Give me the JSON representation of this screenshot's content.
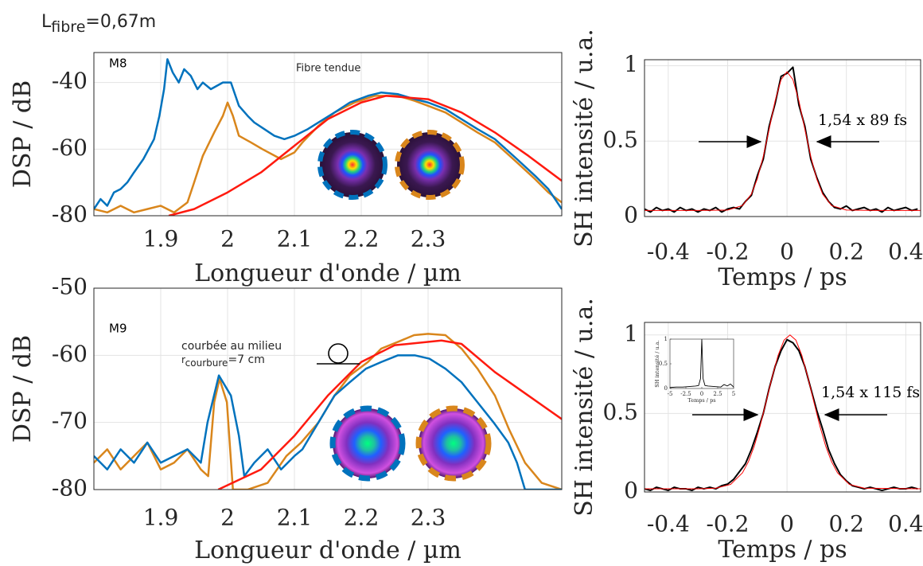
{
  "figure_label": {
    "base": "L",
    "subscript": "fibre",
    "rest": "=0,67m"
  },
  "chart_data": [
    {
      "type": "line",
      "xlabel": "Longueur d'onde / µm",
      "ylabel": "DSP / dB",
      "annotations": [
        "M8",
        "Fibre tendue"
      ],
      "xlim": [
        1.8,
        2.5
      ],
      "ylim": [
        -80,
        -31
      ],
      "xticks": [
        1.9,
        2,
        2.1,
        2.2,
        2.3
      ],
      "yticks": [
        -80,
        -60,
        -40
      ],
      "grid": true,
      "series": [
        {
          "color": "#d9861c",
          "x": [
            1.8,
            1.82,
            1.84,
            1.86,
            1.88,
            1.9,
            1.92,
            1.94,
            1.95,
            1.963,
            1.98,
            1.993,
            2.0,
            2.008,
            2.017,
            2.035,
            2.052,
            2.08,
            2.1,
            2.112,
            2.136,
            2.16,
            2.19,
            2.22,
            2.255,
            2.28,
            2.3,
            2.326,
            2.35,
            2.374,
            2.4,
            2.433,
            2.46,
            2.48,
            2.5
          ],
          "values": [
            -78,
            -79,
            -77,
            -79,
            -78,
            -77,
            -79,
            -76,
            -70,
            -62,
            -55,
            -50,
            -46,
            -50,
            -56,
            -58,
            -60,
            -63,
            -61,
            -58,
            -53,
            -49,
            -46,
            -44,
            -44,
            -45.5,
            -47,
            -49,
            -52,
            -55,
            -58,
            -64,
            -69,
            -73,
            -76
          ]
        },
        {
          "color": "#0072bd",
          "x": [
            1.8,
            1.81,
            1.82,
            1.83,
            1.84,
            1.85,
            1.86,
            1.874,
            1.89,
            1.898,
            1.905,
            1.91,
            1.918,
            1.927,
            1.935,
            1.945,
            1.955,
            1.963,
            1.975,
            1.993,
            2.005,
            2.017,
            2.03,
            2.04,
            2.055,
            2.07,
            2.085,
            2.1,
            2.12,
            2.136,
            2.16,
            2.183,
            2.21,
            2.23,
            2.255,
            2.28,
            2.3,
            2.326,
            2.35,
            2.374,
            2.4,
            2.433,
            2.46,
            2.48,
            2.5
          ],
          "values": [
            -78,
            -75,
            -77,
            -73,
            -72,
            -70,
            -67,
            -63,
            -57,
            -50,
            -42,
            -33,
            -37,
            -40,
            -36,
            -38,
            -42,
            -40,
            -42,
            -40,
            -40,
            -47,
            -50,
            -52,
            -54,
            -56,
            -57,
            -56,
            -54,
            -52,
            -49,
            -46,
            -44,
            -43,
            -43.5,
            -45,
            -46,
            -48,
            -51,
            -54,
            -57,
            -63,
            -68,
            -72,
            -78
          ]
        },
        {
          "color": "#ff1a0f",
          "x": [
            1.912,
            1.95,
            2.0,
            2.05,
            2.1,
            2.15,
            2.2,
            2.237,
            2.3,
            2.35,
            2.4,
            2.45,
            2.5
          ],
          "values": [
            -80,
            -78,
            -73,
            -67,
            -59,
            -51,
            -46,
            -44,
            -45,
            -49,
            -55,
            -62,
            -69.5
          ]
        }
      ]
    },
    {
      "type": "line",
      "xlabel": "Temps / ps",
      "ylabel": "SH intensité / u.a.",
      "annotations": [
        "1,54 x 89 fs"
      ],
      "xlim": [
        -0.48,
        0.45
      ],
      "ylim": [
        0,
        1.04
      ],
      "xticks": [
        -0.4,
        -0.2,
        0,
        0.2,
        0.4
      ],
      "yticks": [
        0,
        0.5,
        1
      ],
      "grid": true,
      "series": [
        {
          "color": "#000000",
          "x": [
            -0.48,
            -0.46,
            -0.44,
            -0.42,
            -0.4,
            -0.38,
            -0.36,
            -0.34,
            -0.32,
            -0.3,
            -0.28,
            -0.26,
            -0.24,
            -0.22,
            -0.2,
            -0.18,
            -0.16,
            -0.14,
            -0.12,
            -0.1,
            -0.08,
            -0.06,
            -0.04,
            -0.02,
            0,
            0.02,
            0.04,
            0.06,
            0.08,
            0.1,
            0.12,
            0.14,
            0.16,
            0.18,
            0.2,
            0.22,
            0.24,
            0.26,
            0.28,
            0.3,
            0.32,
            0.34,
            0.36,
            0.38,
            0.4,
            0.42,
            0.44
          ],
          "values": [
            0.05,
            0.03,
            0.06,
            0.04,
            0.05,
            0.03,
            0.06,
            0.04,
            0.05,
            0.03,
            0.05,
            0.04,
            0.06,
            0.03,
            0.05,
            0.06,
            0.05,
            0.1,
            0.14,
            0.27,
            0.38,
            0.6,
            0.75,
            0.93,
            0.95,
            0.99,
            0.74,
            0.6,
            0.38,
            0.26,
            0.16,
            0.1,
            0.06,
            0.05,
            0.07,
            0.04,
            0.05,
            0.06,
            0.04,
            0.05,
            0.03,
            0.06,
            0.04,
            0.05,
            0.06,
            0.04,
            0.05
          ]
        },
        {
          "color": "#ff0000",
          "x": [
            -0.48,
            -0.3,
            -0.2,
            -0.15,
            -0.12,
            -0.1,
            -0.08,
            -0.06,
            -0.04,
            -0.02,
            0,
            0.02,
            0.04,
            0.06,
            0.08,
            0.1,
            0.12,
            0.15,
            0.2,
            0.3,
            0.45
          ],
          "values": [
            0.04,
            0.04,
            0.043,
            0.073,
            0.149,
            0.25,
            0.398,
            0.58,
            0.767,
            0.908,
            0.96,
            0.908,
            0.767,
            0.58,
            0.398,
            0.25,
            0.149,
            0.073,
            0.043,
            0.04,
            0.04
          ]
        }
      ]
    },
    {
      "type": "line",
      "xlabel": "Longueur d'onde / µm",
      "ylabel": "DSP / dB",
      "annotations": [
        "M9",
        "courbée au milieu"
      ],
      "bend_radius_label": {
        "base": "r",
        "subscript": "courbure",
        "rest": "=7 cm"
      },
      "xlim": [
        1.8,
        2.5
      ],
      "ylim": [
        -80,
        -50
      ],
      "xticks": [
        1.9,
        2,
        2.1,
        2.2,
        2.3
      ],
      "yticks": [
        -80,
        -70,
        -60,
        -50
      ],
      "grid": true,
      "series": [
        {
          "color": "#d9861c",
          "x": [
            1.8,
            1.82,
            1.84,
            1.86,
            1.88,
            1.9,
            1.92,
            1.94,
            1.96,
            1.971,
            1.98,
            1.988,
            1.999,
            2.008,
            2.03,
            2.06,
            2.088,
            2.11,
            2.136,
            2.16,
            2.183,
            2.21,
            2.23,
            2.255,
            2.279,
            2.3,
            2.326,
            2.35,
            2.374,
            2.4,
            2.421,
            2.445,
            2.47,
            2.5
          ],
          "values": [
            -76,
            -74,
            -77,
            -75,
            -73,
            -77,
            -76,
            -74,
            -77,
            -78,
            -67,
            -63.5,
            -67,
            -80,
            -80,
            -79,
            -75,
            -73,
            -70,
            -66,
            -63,
            -61,
            -59,
            -58,
            -57,
            -56.8,
            -57,
            -59,
            -62,
            -66,
            -71,
            -76,
            -79,
            -80
          ]
        },
        {
          "color": "#0072bd",
          "x": [
            1.8,
            1.82,
            1.84,
            1.86,
            1.88,
            1.9,
            1.92,
            1.94,
            1.96,
            1.97,
            1.987,
            2.005,
            2.017,
            2.025,
            2.04,
            2.06,
            2.08,
            2.1,
            2.112,
            2.136,
            2.16,
            2.183,
            2.207,
            2.23,
            2.255,
            2.28,
            2.302,
            2.326,
            2.35,
            2.374,
            2.398,
            2.42,
            2.433,
            2.445,
            2.47,
            2.5
          ],
          "values": [
            -75,
            -77,
            -74,
            -76,
            -73,
            -76,
            -75,
            -74,
            -76,
            -70,
            -63,
            -66,
            -72,
            -78,
            -76,
            -74,
            -77,
            -75,
            -74,
            -70,
            -66,
            -64,
            -62,
            -61,
            -60,
            -60,
            -60.5,
            -62,
            -64,
            -67,
            -70,
            -73,
            -76,
            -80,
            -80,
            -80
          ]
        },
        {
          "color": "#ff1a0f",
          "x": [
            1.986,
            2.05,
            2.1,
            2.15,
            2.2,
            2.25,
            2.32,
            2.35,
            2.4,
            2.45,
            2.5
          ],
          "values": [
            -80,
            -77,
            -72,
            -66,
            -61,
            -58.5,
            -57.8,
            -58.3,
            -62.5,
            -66,
            -69.5
          ]
        }
      ]
    },
    {
      "type": "line",
      "xlabel": "Temps / ps",
      "ylabel": "SH intensité / u.a.",
      "annotations": [
        "1,54 x 115 fs"
      ],
      "xlim": [
        -0.48,
        0.45
      ],
      "ylim": [
        0,
        1.08
      ],
      "xticks": [
        -0.4,
        -0.2,
        0,
        0.2,
        0.4
      ],
      "yticks": [
        0,
        0.5,
        1
      ],
      "grid": true,
      "series": [
        {
          "color": "#000000",
          "x": [
            -0.48,
            -0.46,
            -0.44,
            -0.42,
            -0.4,
            -0.38,
            -0.36,
            -0.34,
            -0.32,
            -0.3,
            -0.28,
            -0.26,
            -0.24,
            -0.22,
            -0.2,
            -0.18,
            -0.16,
            -0.14,
            -0.12,
            -0.1,
            -0.08,
            -0.06,
            -0.04,
            -0.02,
            0,
            0.02,
            0.04,
            0.06,
            0.08,
            0.1,
            0.12,
            0.14,
            0.16,
            0.18,
            0.2,
            0.22,
            0.24,
            0.26,
            0.28,
            0.3,
            0.32,
            0.34,
            0.36,
            0.38,
            0.4,
            0.42,
            0.44
          ],
          "values": [
            0.02,
            0.01,
            0.03,
            0.02,
            0.01,
            0.03,
            0.02,
            0.02,
            0.01,
            0.03,
            0.02,
            0.03,
            0.02,
            0.04,
            0.05,
            0.08,
            0.13,
            0.18,
            0.27,
            0.38,
            0.5,
            0.66,
            0.8,
            0.9,
            0.97,
            0.95,
            0.9,
            0.8,
            0.66,
            0.52,
            0.4,
            0.27,
            0.18,
            0.11,
            0.07,
            0.04,
            0.03,
            0.02,
            0.03,
            0.02,
            0.01,
            0.02,
            0.03,
            0.02,
            0.02,
            0.03,
            0.02
          ]
        },
        {
          "color": "#ff0000",
          "x": [
            -0.48,
            -0.3,
            -0.24,
            -0.19,
            -0.15,
            -0.13,
            -0.11,
            -0.09,
            -0.07,
            -0.05,
            -0.03,
            -0.01,
            0.01,
            0.03,
            0.05,
            0.07,
            0.09,
            0.11,
            0.13,
            0.15,
            0.17,
            0.21,
            0.26,
            0.45
          ],
          "values": [
            0.02,
            0.02,
            0.024,
            0.048,
            0.122,
            0.193,
            0.294,
            0.425,
            0.577,
            0.732,
            0.87,
            0.967,
            1.0,
            0.967,
            0.87,
            0.732,
            0.577,
            0.425,
            0.294,
            0.193,
            0.122,
            0.048,
            0.024,
            0.02
          ]
        }
      ]
    },
    {
      "type": "line",
      "xlabel": "Temps / ps",
      "ylabel": "SH intensité / u.a.",
      "xlim": [
        -5,
        5
      ],
      "ylim": [
        0,
        1
      ],
      "xticks": [
        -5,
        -2.5,
        0,
        2.5,
        5
      ],
      "yticks": [
        0,
        0.5,
        1
      ],
      "grid": false,
      "series": [
        {
          "color": "#000000",
          "x": [
            -5,
            -4,
            -3,
            -2,
            -1,
            -0.5,
            -0.2,
            0,
            0.2,
            0.5,
            1,
            2,
            3,
            3.5,
            4,
            4.5,
            5
          ],
          "values": [
            0.02,
            0.03,
            0.03,
            0.04,
            0.05,
            0.06,
            0.2,
            1,
            0.2,
            0.06,
            0.05,
            0.04,
            0.03,
            0.08,
            0.05,
            0.09,
            0.03
          ]
        }
      ]
    }
  ]
}
